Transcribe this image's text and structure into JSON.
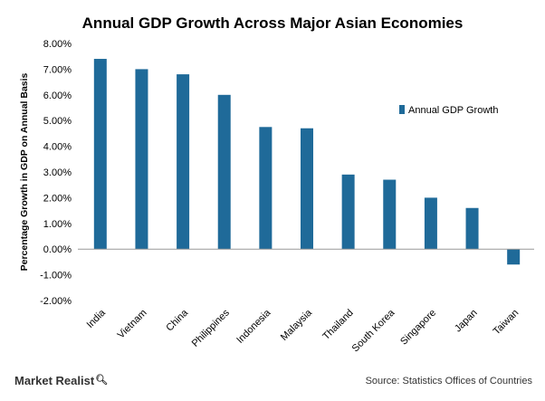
{
  "chart_data": {
    "type": "bar",
    "title": "Annual GDP Growth Across Major Asian Economies",
    "xlabel": "",
    "ylabel": "Percentage Growth in GDP on Annual Basis",
    "categories": [
      "India",
      "Vietnam",
      "China",
      "Philippines",
      "Indonesia",
      "Malaysia",
      "Thailand",
      "South Korea",
      "Singapore",
      "Japan",
      "Taiwan"
    ],
    "series": [
      {
        "name": "Annual GDP Growth",
        "values": [
          7.4,
          7.0,
          6.8,
          6.0,
          4.75,
          4.7,
          2.9,
          2.7,
          2.0,
          1.6,
          -0.6
        ],
        "color": "#1f6a99"
      }
    ],
    "yticks": [
      "-2.00%",
      "-1.00%",
      "0.00%",
      "1.00%",
      "2.00%",
      "3.00%",
      "4.00%",
      "5.00%",
      "6.00%",
      "7.00%",
      "8.00%"
    ],
    "ylim": [
      -2,
      8
    ],
    "grid": false,
    "legend_position": "right"
  },
  "footer": {
    "brand": "Market Realist",
    "brand_icon": "magnifier-q-icon",
    "source": "Source: Statistics Offices of Countries"
  }
}
